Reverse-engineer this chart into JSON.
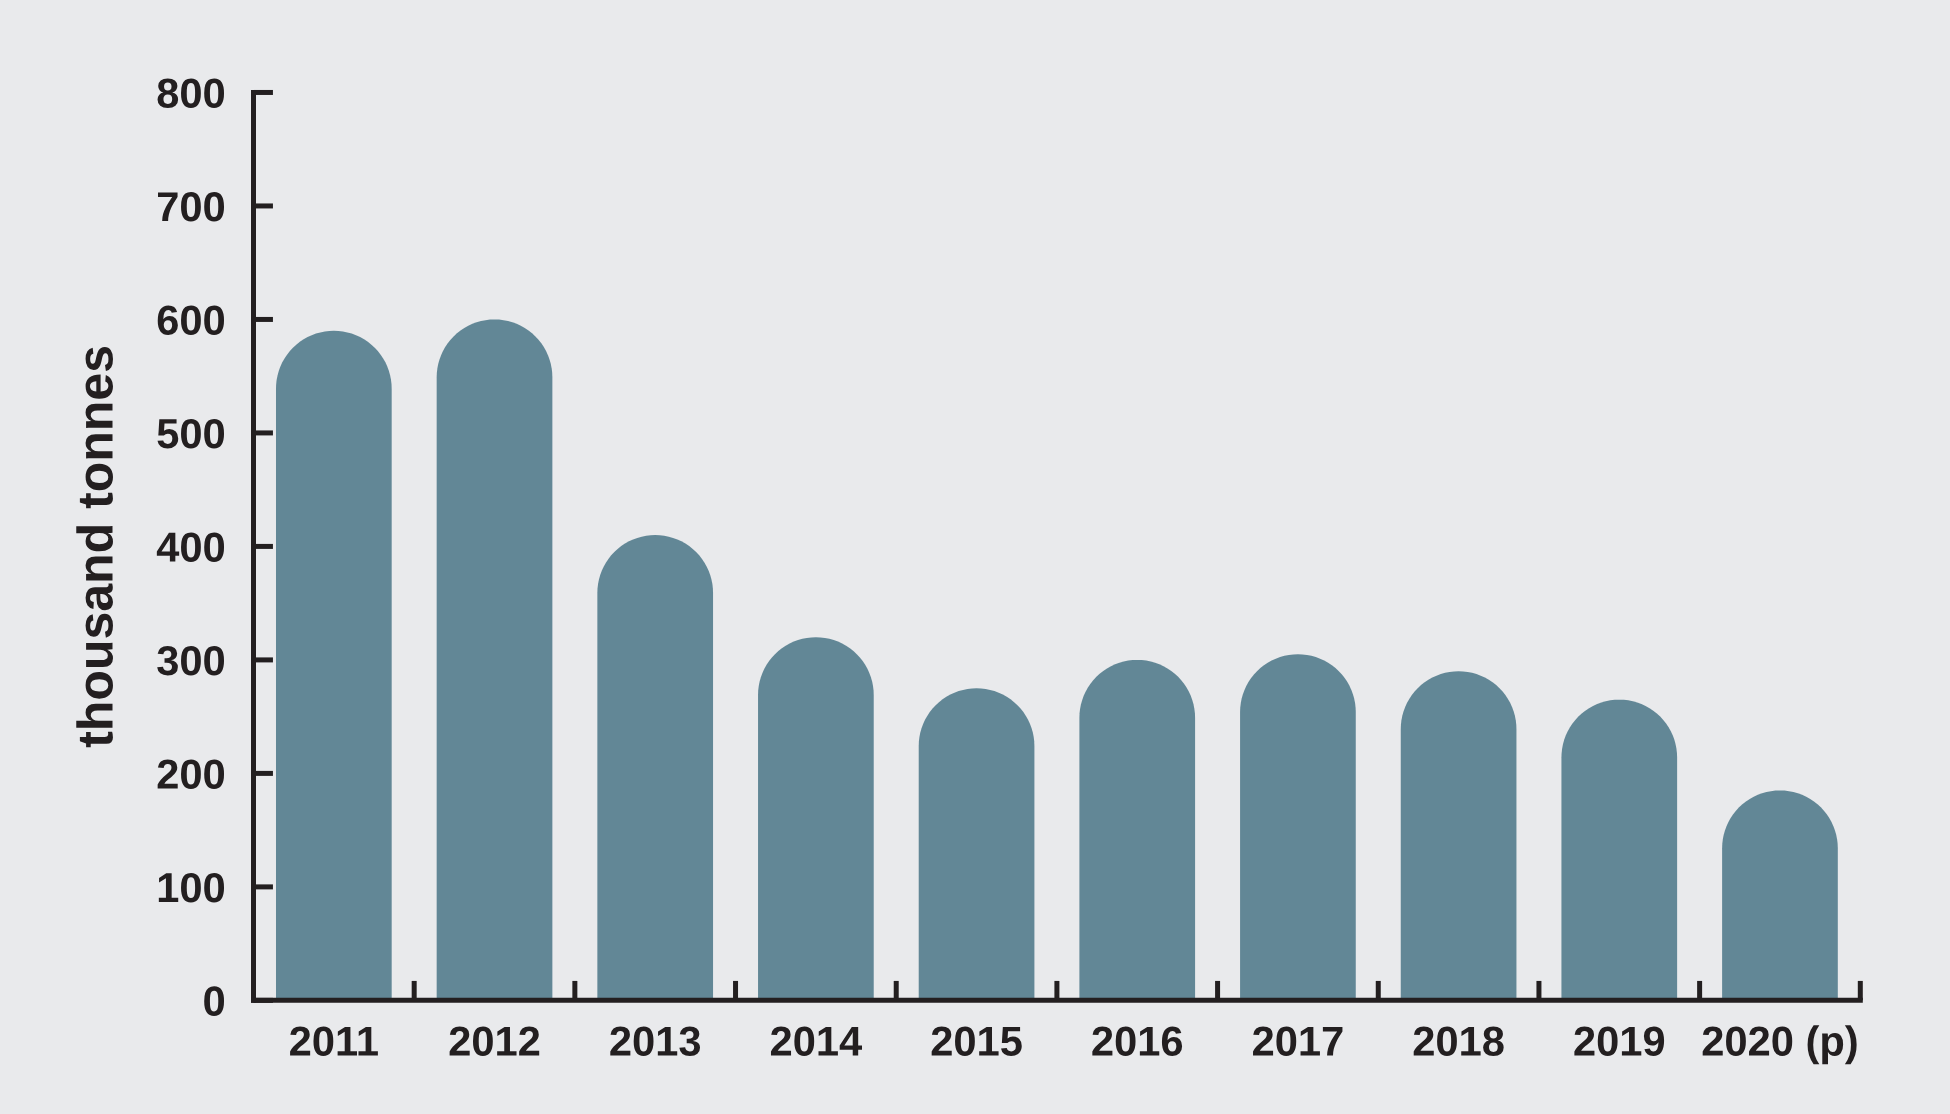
{
  "chart_data": {
    "type": "bar",
    "ylabel": "thousand tonnes",
    "categories": [
      "2011",
      "2012",
      "2013",
      "2014",
      "2015",
      "2016",
      "2017",
      "2018",
      "2019",
      "2020 (p)"
    ],
    "values": [
      590,
      600,
      410,
      320,
      275,
      300,
      305,
      290,
      265,
      185
    ],
    "color": "#628796",
    "ylim": [
      0,
      800
    ],
    "yticks": [
      0,
      100,
      200,
      300,
      400,
      500,
      600,
      700,
      800
    ]
  }
}
